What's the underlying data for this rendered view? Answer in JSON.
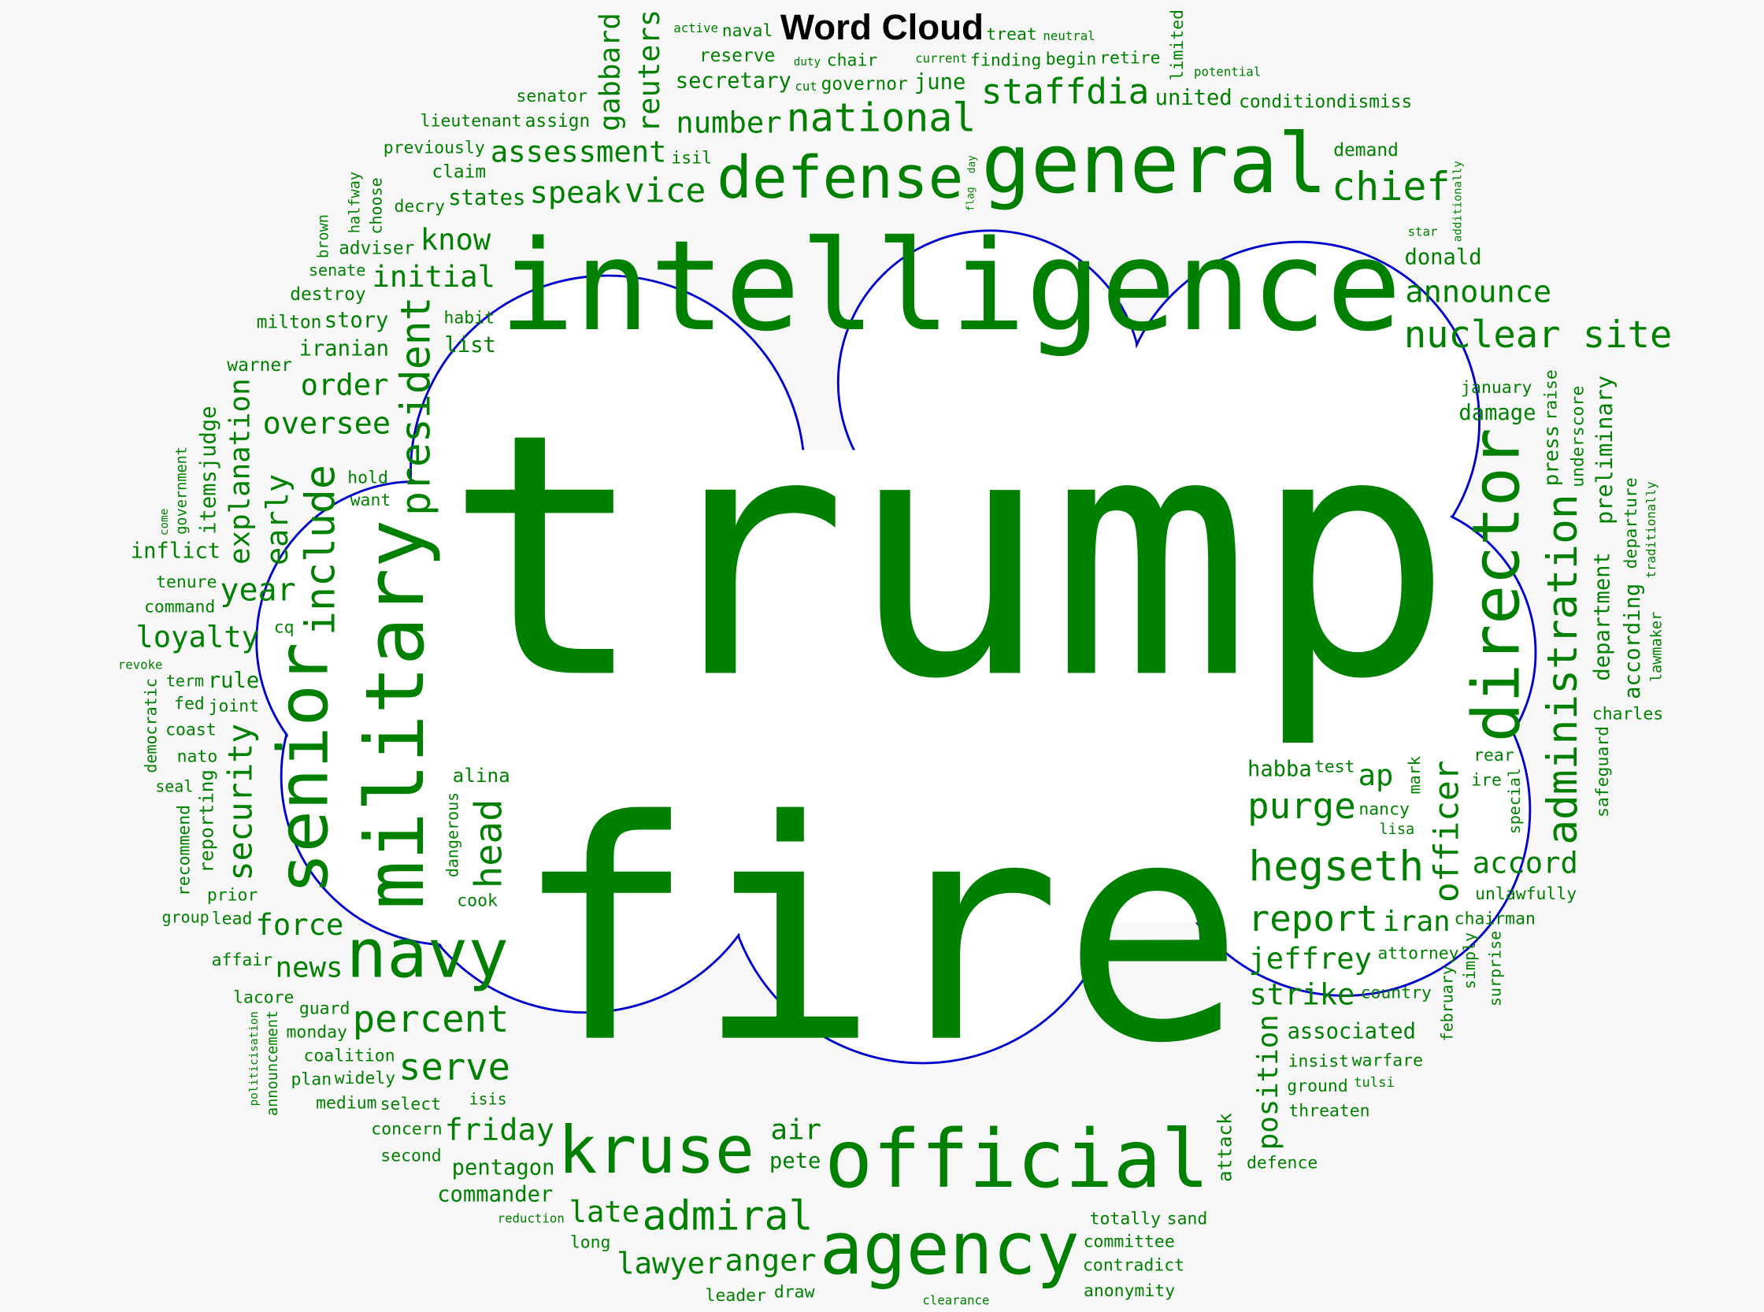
{
  "chart_data": {
    "type": "wordcloud",
    "title": "Word Cloud",
    "word_color": "#008000",
    "outline_color": "#0000cc",
    "shape": "cloud",
    "words": [
      "trump",
      "fire",
      "intelligence",
      "general",
      "defense",
      "official",
      "agency",
      "kruse",
      "navy",
      "hegseth",
      "admiral",
      "national",
      "nuclear site",
      "chief",
      "staffdia",
      "number",
      "report",
      "purge",
      "jeffrey",
      "strike",
      "associated",
      "announce",
      "donald",
      "united",
      "conditiondismiss",
      "demand",
      "finding",
      "current",
      "potential",
      "governor",
      "reserve",
      "active",
      "assign",
      "adviser",
      "list",
      "speak",
      "secretary",
      "claim",
      "destroy",
      "begin",
      "iranian",
      "oversee",
      "story",
      "milton",
      "warner",
      "chair",
      "duty",
      "treat",
      "cut",
      "neutral",
      "june",
      "naval",
      "senator",
      "star",
      "order",
      "habit",
      "senate",
      "want",
      "assessment",
      "isil",
      "retire",
      "decry",
      "initial",
      "previously",
      "tenure",
      "inflict",
      "year",
      "loyalty",
      "joint",
      "vice",
      "lieutenant",
      "know",
      "revoke",
      "command",
      "cq",
      "rule",
      "coast",
      "coalition",
      "states",
      "cook",
      "attorney",
      "country",
      "hold",
      "guard",
      "term",
      "seal",
      "select",
      "alina",
      "news",
      "isis",
      "prior",
      "nato",
      "charles",
      "iran",
      "unlawfully",
      "accord",
      "rear",
      "lisa",
      "chairman",
      "nancy",
      "insist",
      "fed",
      "widely",
      "monday",
      "late",
      "draw",
      "lead",
      "group",
      "percent",
      "concern",
      "pete",
      "ground",
      "anger",
      "serve",
      "totally",
      "lawyer",
      "affair",
      "lacore",
      "reduction",
      "warfare",
      "friday",
      "force",
      "habba",
      "test",
      "committee",
      "air",
      "medium",
      "pentagon",
      "clearance",
      "defence",
      "second",
      "long",
      "threaten",
      "plan",
      "commander",
      "leader",
      "contradict",
      "sand",
      "anonymity",
      "damage",
      "ire",
      "january",
      "tulsi",
      "ap",
      "military",
      "senior",
      "director",
      "administration",
      "president",
      "include",
      "explanation",
      "security",
      "head",
      "early",
      "itemsjudge",
      "gabbard",
      "reuters",
      "limited",
      "position",
      "underscore",
      "safeguard",
      "department",
      "departure",
      "press",
      "raise",
      "mark",
      "preliminary",
      "traditionally",
      "according",
      "lawmaker",
      "officer",
      "attack",
      "recommend",
      "announcement",
      "reporting",
      "politicisation",
      "government",
      "dangerous",
      "halfway",
      "brown",
      "choose",
      "democratic",
      "come",
      "flag",
      "day",
      "additionally",
      "special",
      "simply",
      "february",
      "surprise"
    ]
  }
}
